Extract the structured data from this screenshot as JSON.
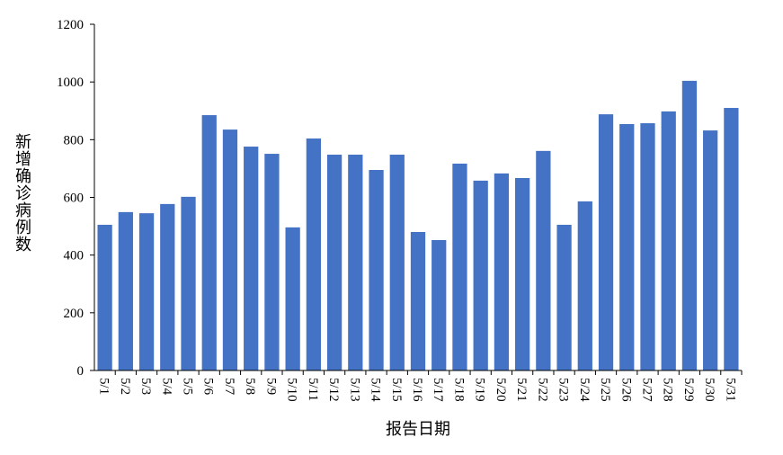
{
  "chart_data": {
    "type": "bar",
    "x_label": "报告日期",
    "y_label": "新增确诊病例数",
    "categories": [
      "5/1",
      "5/2",
      "5/3",
      "5/4",
      "5/5",
      "5/6",
      "5/7",
      "5/8",
      "5/9",
      "5/10",
      "5/11",
      "5/12",
      "5/13",
      "5/14",
      "5/15",
      "5/16",
      "5/17",
      "5/18",
      "5/19",
      "5/20",
      "5/21",
      "5/22",
      "5/23",
      "5/24",
      "5/25",
      "5/26",
      "5/27",
      "5/28",
      "5/29",
      "5/30",
      "5/31"
    ],
    "values": [
      505,
      549,
      545,
      577,
      602,
      885,
      835,
      776,
      751,
      496,
      804,
      748,
      748,
      695,
      748,
      480,
      452,
      717,
      658,
      683,
      667,
      761,
      505,
      586,
      888,
      854,
      857,
      898,
      1004,
      832,
      910
    ],
    "color": "#4472c4",
    "ylim": [
      0,
      1200
    ],
    "yticks": [
      0,
      200,
      400,
      600,
      800,
      1000,
      1200
    ],
    "grid": false
  }
}
